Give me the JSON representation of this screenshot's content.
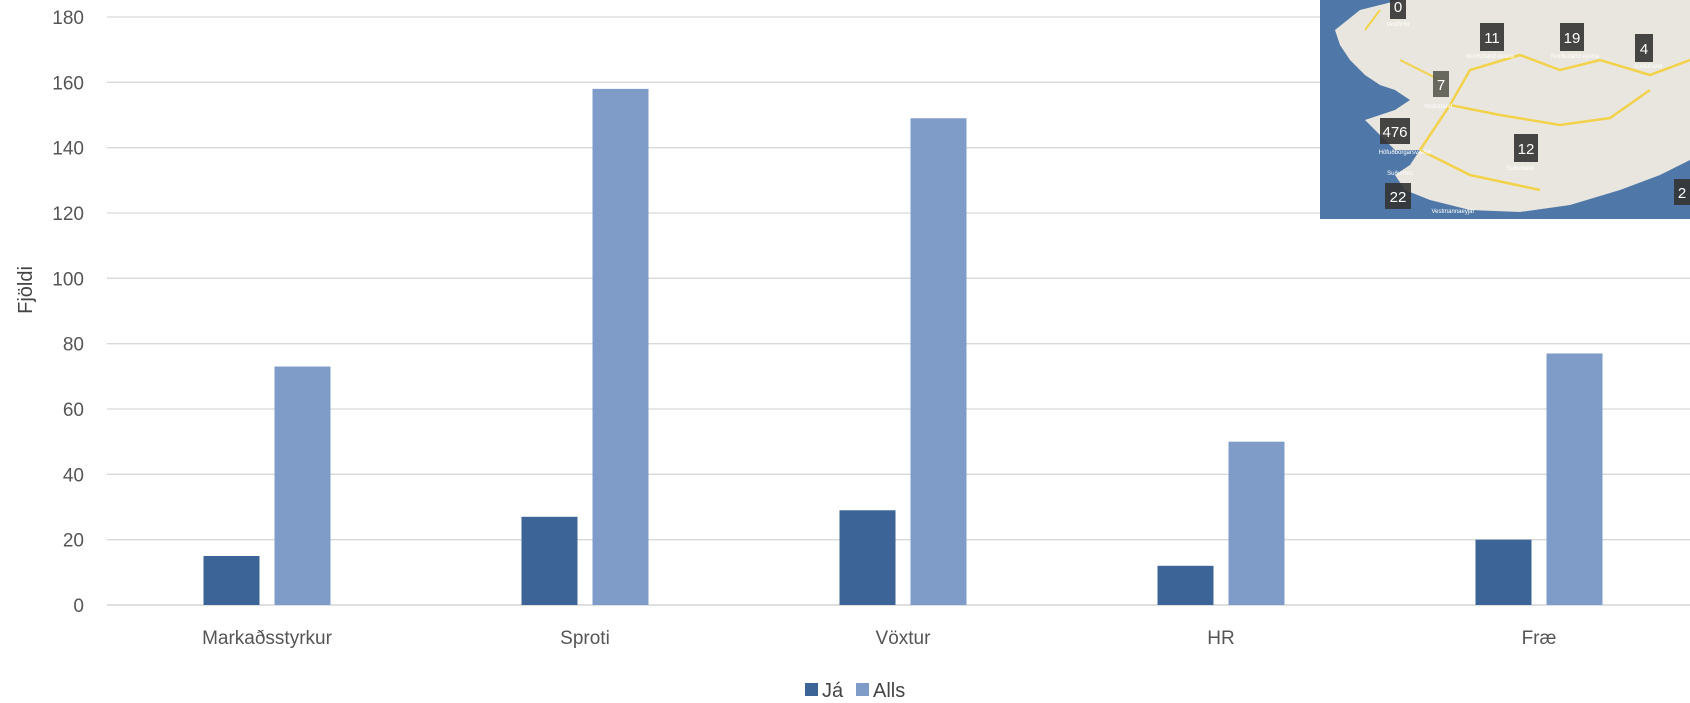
{
  "chart_data": {
    "type": "bar",
    "title": "",
    "xlabel": "",
    "ylabel": "Fjöldi",
    "ylim": [
      0,
      180
    ],
    "yticks": [
      0,
      20,
      40,
      60,
      80,
      100,
      120,
      140,
      160,
      180
    ],
    "grid": true,
    "legend_position": "bottom",
    "categories": [
      "Markaðsstyrkur",
      "Sproti",
      "Vöxtur",
      "HR",
      "Fræ"
    ],
    "series": [
      {
        "name": "Já",
        "color": "#3d6496",
        "values": [
          15,
          27,
          29,
          12,
          20
        ]
      },
      {
        "name": "Alls",
        "color": "#7f9cc8",
        "values": [
          73,
          158,
          149,
          50,
          77
        ]
      }
    ]
  },
  "map_inset": {
    "markers": [
      {
        "count": "0",
        "region": "Vestfirðir"
      },
      {
        "count": "11",
        "region": "Norðurland vestra"
      },
      {
        "count": "19",
        "region": "Norðurland eystra"
      },
      {
        "count": "4",
        "region": "Austurland"
      },
      {
        "count": "7",
        "region": "Vesturland"
      },
      {
        "count": "476",
        "region": "Höfuðborgarsvæðið"
      },
      {
        "count": "12",
        "region": "Suðurland"
      },
      {
        "count": "22",
        "region": "Suðurnes"
      },
      {
        "count": "2",
        "region": ""
      }
    ],
    "extra_labels": [
      "Vestmannaeyjar"
    ],
    "colors": {
      "sea": "#4f78a8",
      "land": "#e9e6df",
      "marker": "#333333",
      "road": "#f2d24a"
    }
  }
}
